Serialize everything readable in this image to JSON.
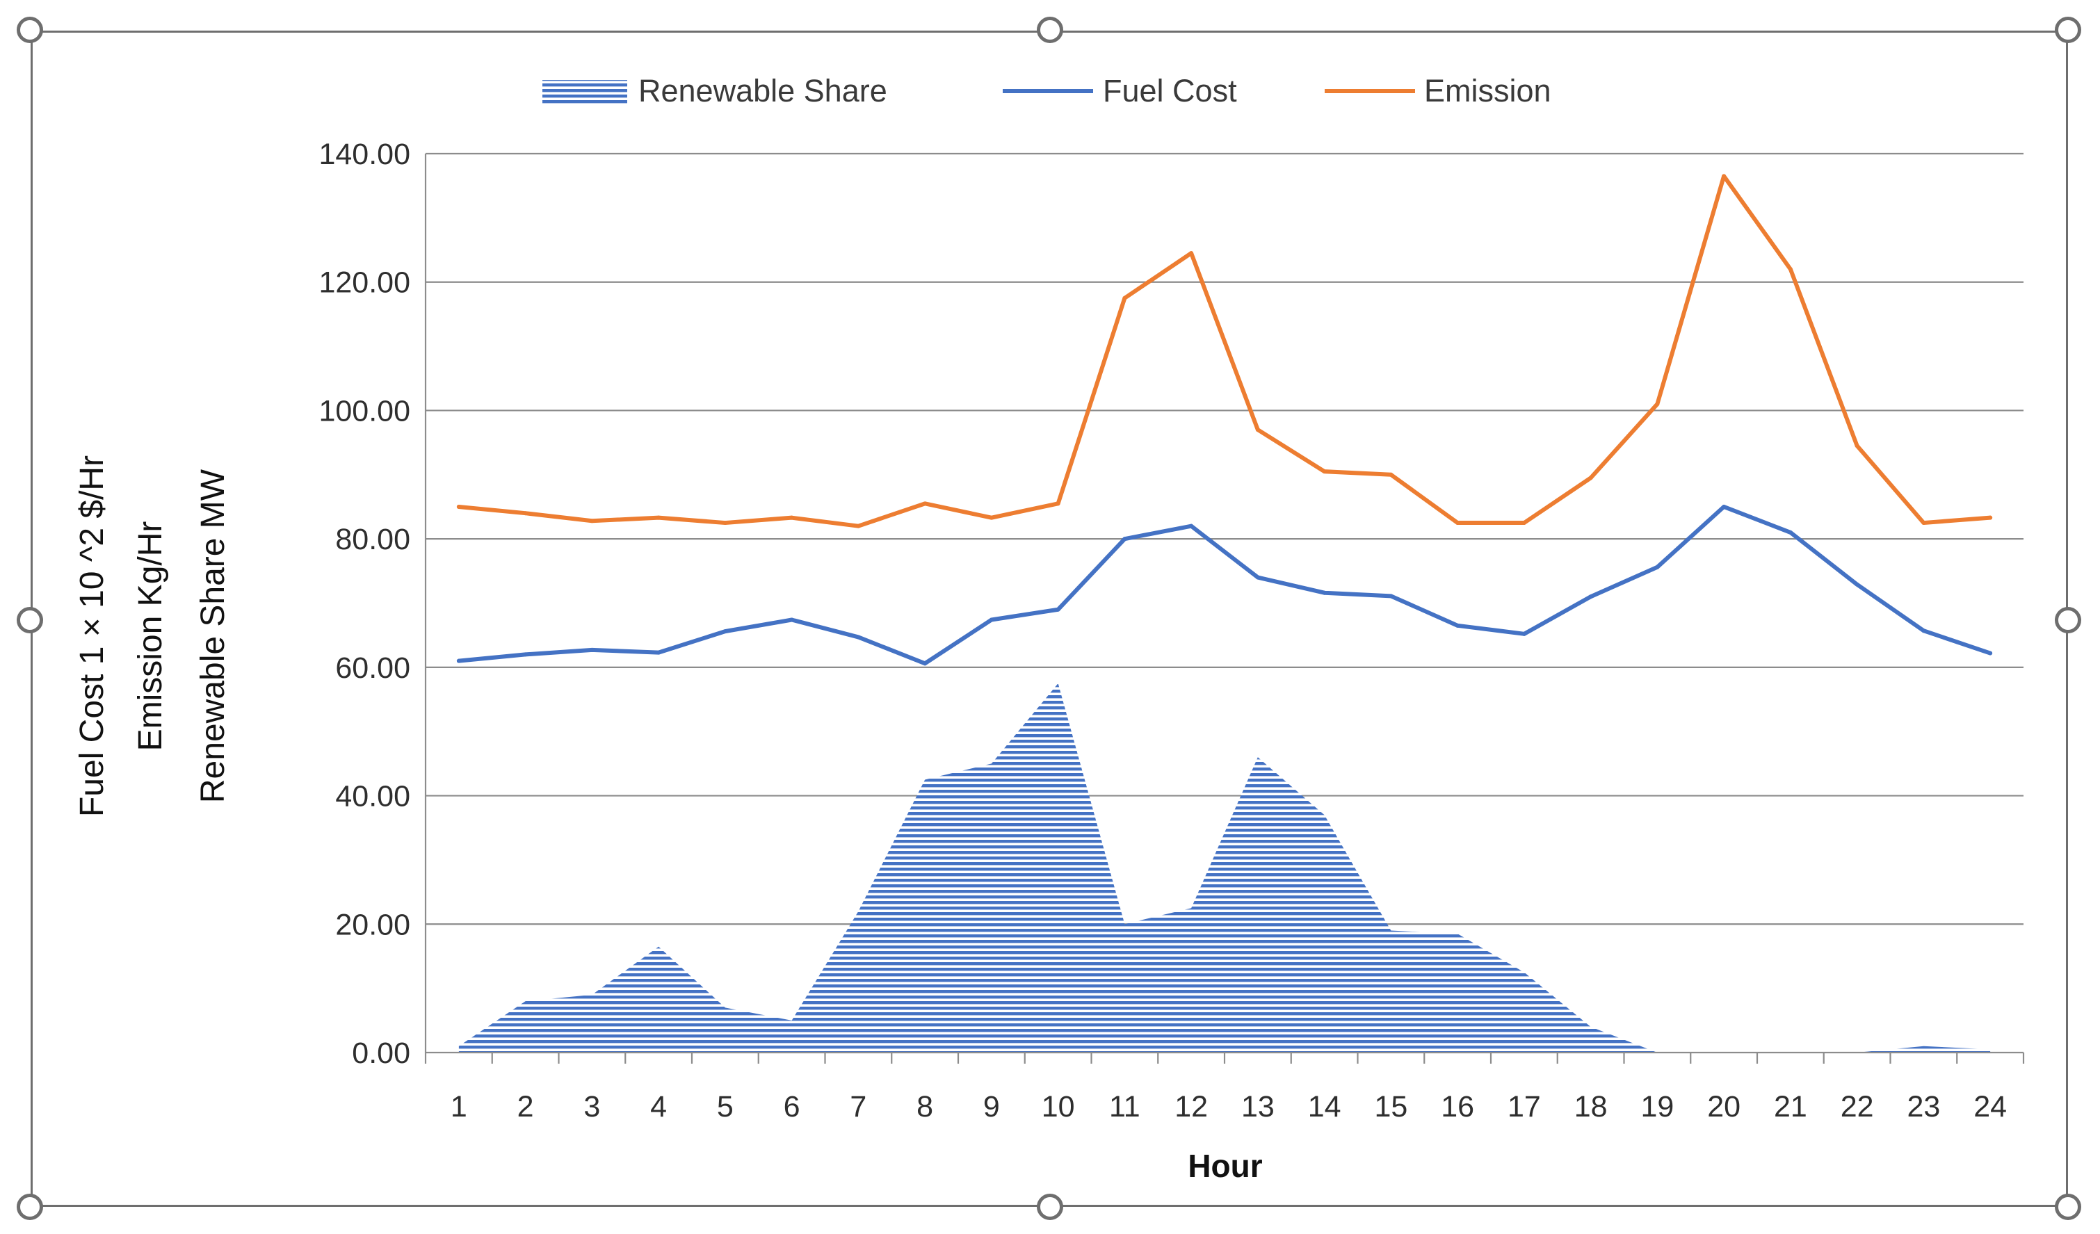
{
  "chart_data": {
    "type": "line",
    "title": "",
    "xlabel": "Hour",
    "ylabel_lines": [
      "Fuel Cost 1 × 10 ^2  $/Hr",
      "Emission  Kg/Hr",
      "Renewable Share  MW"
    ],
    "categories": [
      "1",
      "2",
      "3",
      "4",
      "5",
      "6",
      "7",
      "8",
      "9",
      "10",
      "11",
      "12",
      "13",
      "14",
      "15",
      "16",
      "17",
      "18",
      "19",
      "20",
      "21",
      "22",
      "23",
      "24"
    ],
    "ylim": [
      0,
      140
    ],
    "yticks": [
      "0.00",
      "20.00",
      "40.00",
      "60.00",
      "80.00",
      "100.00",
      "120.00",
      "140.00"
    ],
    "grid": true,
    "legend_position": "top-center",
    "series": [
      {
        "name": "Renewable Share",
        "kind": "area",
        "color": "#4472C4",
        "values": [
          1,
          8,
          9,
          16.5,
          7,
          5,
          22,
          42.5,
          45,
          57.5,
          20,
          22.5,
          46,
          37,
          19,
          18.5,
          12.5,
          4,
          0,
          0,
          0,
          0,
          1,
          0.5
        ]
      },
      {
        "name": "Fuel Cost",
        "kind": "line",
        "color": "#4472C4",
        "values": [
          61,
          62,
          62.7,
          62.3,
          65.6,
          67.4,
          64.7,
          60.6,
          67.4,
          69,
          80,
          82,
          74,
          71.6,
          71.1,
          66.5,
          65.2,
          71,
          75.6,
          85,
          81,
          72.9,
          65.7,
          62.2
        ]
      },
      {
        "name": "Emission",
        "kind": "line",
        "color": "#ED7D31",
        "values": [
          85,
          84,
          82.8,
          83.3,
          82.5,
          83.3,
          82,
          85.5,
          83.3,
          85.5,
          117.5,
          124.5,
          97,
          90.5,
          90,
          82.5,
          82.5,
          89.5,
          101,
          136.5,
          122,
          94.5,
          82.5,
          83.3
        ]
      }
    ]
  }
}
